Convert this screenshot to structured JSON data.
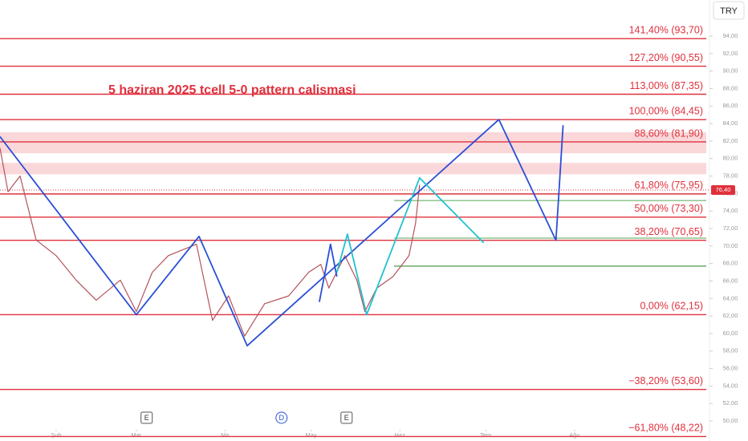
{
  "chart_data": {
    "type": "line",
    "title": "5 haziran 2025 tcell 5-0 pattern calismasi",
    "currency": "TRY",
    "ylim": [
      47.71,
      98.12
    ],
    "yticks": [
      {
        "value": 50,
        "label": "50,00"
      },
      {
        "value": 52,
        "label": "52,00"
      },
      {
        "value": 54,
        "label": "54,00"
      },
      {
        "value": 56,
        "label": "56,00"
      },
      {
        "value": 58,
        "label": "58,00"
      },
      {
        "value": 60,
        "label": "60,00"
      },
      {
        "value": 62,
        "label": "62,00"
      },
      {
        "value": 64,
        "label": "64,00"
      },
      {
        "value": 66,
        "label": "66,00"
      },
      {
        "value": 68,
        "label": "68,00"
      },
      {
        "value": 70,
        "label": "70,00"
      },
      {
        "value": 72,
        "label": "72,00"
      },
      {
        "value": 74,
        "label": "74,00"
      },
      {
        "value": 76,
        "label": "76,00"
      },
      {
        "value": 78,
        "label": "78,00"
      },
      {
        "value": 80,
        "label": "80,00"
      },
      {
        "value": 82,
        "label": "82,00"
      },
      {
        "value": 84,
        "label": "84,00"
      },
      {
        "value": 86,
        "label": "86,00"
      },
      {
        "value": 88,
        "label": "88,00"
      },
      {
        "value": 90,
        "label": "90,00"
      },
      {
        "value": 92,
        "label": "92,00"
      },
      {
        "value": 94,
        "label": "94,00"
      }
    ],
    "xlim": [
      12.4,
      259
    ],
    "xticks": [
      {
        "value": 32,
        "label": "Şub"
      },
      {
        "value": 60,
        "label": "Mar"
      },
      {
        "value": 91,
        "label": "Nis"
      },
      {
        "value": 121,
        "label": "May"
      },
      {
        "value": 152,
        "label": "Haz"
      },
      {
        "value": 182,
        "label": "Tem"
      },
      {
        "value": 213,
        "label": "Ağu"
      }
    ],
    "levels": [
      {
        "label": "141,40% (93,70)",
        "value": 93.7
      },
      {
        "label": "127,20% (90,55)",
        "value": 90.55
      },
      {
        "label": "113,00% (87,35)",
        "value": 87.35
      },
      {
        "label": "100,00% (84,45)",
        "value": 84.45
      },
      {
        "label": "88,60% (81,90)",
        "value": 81.9
      },
      {
        "label": "61,80% (75,95)",
        "value": 75.95
      },
      {
        "label": "50,00% (73,30)",
        "value": 73.3
      },
      {
        "label": "38,20% (70,65)",
        "value": 70.65
      },
      {
        "label": "0,00% (62,15)",
        "value": 62.15
      },
      {
        "label": "−38,20% (53,60)",
        "value": 53.6
      },
      {
        "label": "−61,80% (48,22)",
        "value": 48.22
      }
    ],
    "level_color": "#e0303c",
    "zones": [
      {
        "from": 80.6,
        "to": 83.0,
        "color": "#f4a6ab"
      },
      {
        "from": 78.2,
        "to": 79.5,
        "color": "#f4a6ab"
      }
    ],
    "support_lines": [
      {
        "value": 75.2,
        "color": "#8bc48a"
      },
      {
        "value": 70.9,
        "color": "#8bc48a"
      },
      {
        "value": 67.7,
        "color": "#6aa86a"
      }
    ],
    "last_price": {
      "value": 76.4,
      "label": "76,40",
      "color": "#e0303c"
    },
    "series": [
      {
        "color": "#b5525c",
        "x": [
          12.4,
          15.2,
          19.4,
          25,
          32,
          39,
          46,
          54.4,
          60,
          65.6,
          71.2,
          81,
          86.6,
          92.2,
          97.8,
          104.8,
          113.2,
          120.2,
          124.4,
          127.2,
          132.8,
          137,
          139.8,
          144,
          149.6,
          155.2,
          157.5,
          158.9
        ],
        "values": [
          81.2,
          76.2,
          78,
          70.7,
          68.9,
          66.1,
          63.8,
          66.1,
          62.5,
          67,
          68.9,
          70.2,
          61.5,
          64.3,
          59.7,
          63.4,
          64.3,
          67,
          67.9,
          65.2,
          68.9,
          66.1,
          62.5,
          65.2,
          66.5,
          68.9,
          72.6,
          77
        ]
      },
      {
        "color": "#2a4fd6",
        "x": [
          12.4,
          60,
          81.9,
          98.7,
          186.6,
          206.5,
          209
        ],
        "values": [
          82.5,
          62.15,
          71.1,
          58.6,
          84.45,
          70.65,
          83.8
        ]
      },
      {
        "color": "#2a4fd6",
        "x": [
          123.9,
          127.8,
          130
        ],
        "values": [
          63.6,
          70.2,
          66.5
        ]
      },
      {
        "color": "#22c1d0",
        "x": [
          130,
          133.7,
          140.4,
          158.9,
          181.3
        ],
        "values": [
          66.96,
          71.36,
          62.15,
          77.78,
          70.36
        ]
      }
    ],
    "events": [
      {
        "label": "E",
        "x": 63.6
      },
      {
        "label": "D",
        "x": 110.7
      },
      {
        "label": "E",
        "x": 133.4
      }
    ]
  }
}
